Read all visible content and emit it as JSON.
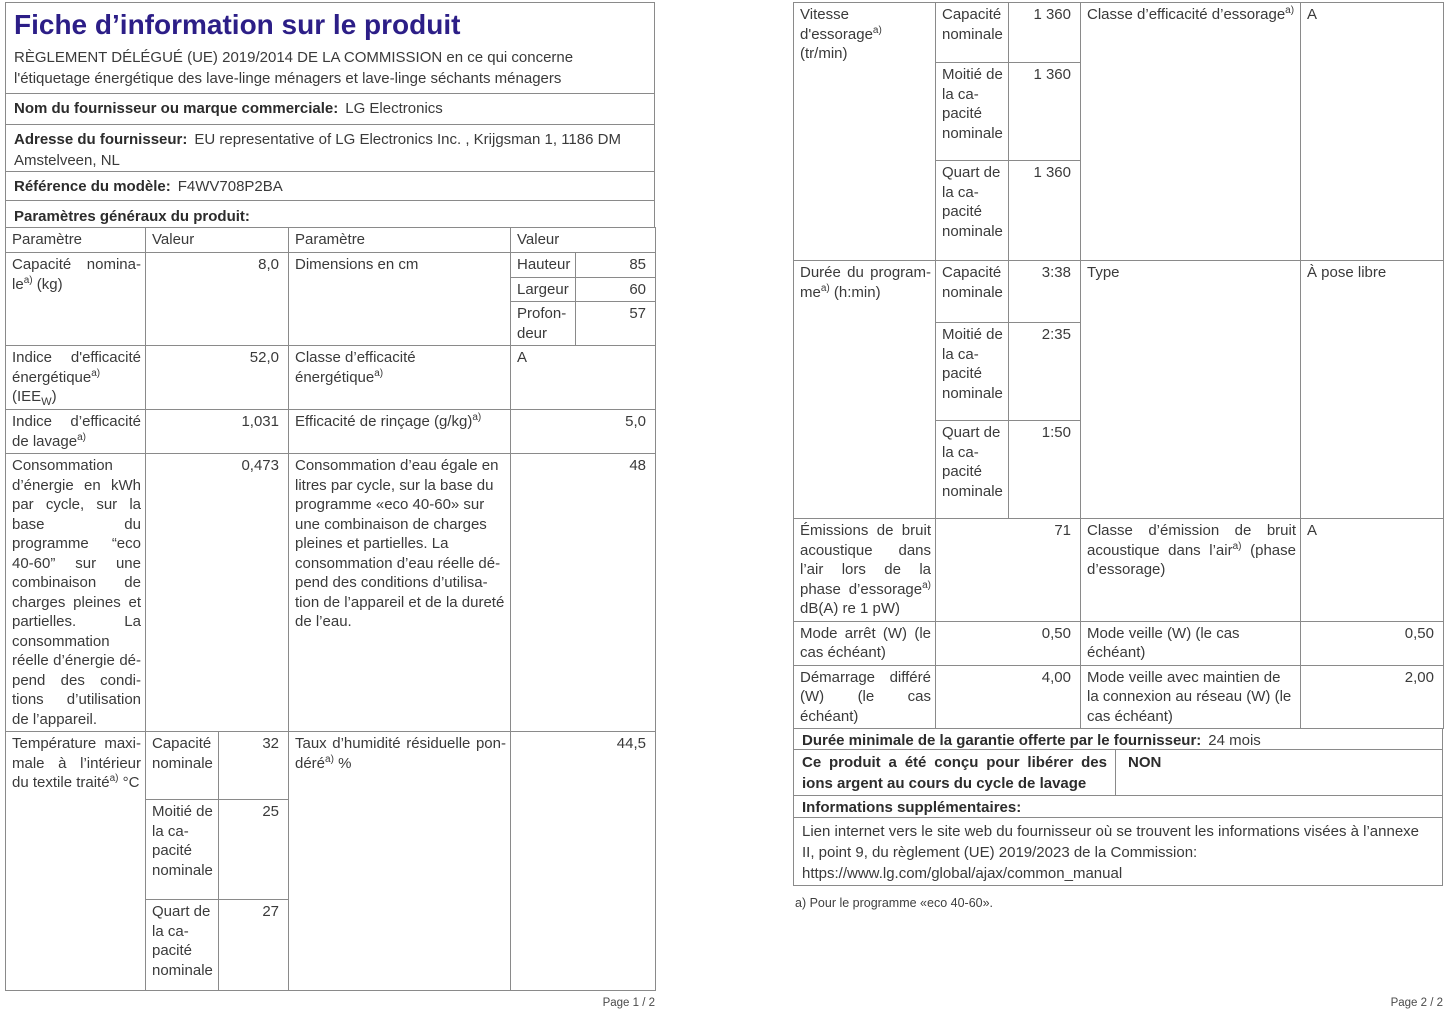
{
  "colors": {
    "title_accent": "#2c1e87",
    "body_text": "#3a3a3a",
    "table_border": "#8a8a8a"
  },
  "page1": {
    "title": "Fiche d’information sur le produit",
    "regulation": "RÈGLEMENT DÉLÉGUÉ (UE) 2019/2014 DE LA COMMISSION en ce qui concerne l'étiquetage énergétique des lave-linge ménagers et lave-linge séchants ménagers",
    "supplier_name_label": "Nom du fournisseur ou marque commerciale:",
    "supplier_name_value": "LG Electronics",
    "supplier_address_label": "Adresse du fournisseur:",
    "supplier_address_value": "EU representative of LG Electronics Inc. , Krijgsman 1, 1186 DM Amstel­veen, NL",
    "model_ref_label": "Référence du modèle:",
    "model_ref_value": "F4WV708P2BA",
    "general_params_heading": "Paramètres généraux du produit:",
    "table": {
      "headers": [
        "Paramètre",
        "Valeur",
        "Paramètre",
        "Valeur"
      ],
      "rows": {
        "capacity": {
          "label": "Capacité nomina­le^{a)} (kg)",
          "value": "8,0",
          "right_label": "Dimensions en cm",
          "dims": [
            {
              "k": "Hauteur",
              "v": "85"
            },
            {
              "k": "Largeur",
              "v": "60"
            },
            {
              "k": "Profon­deur",
              "v": "57"
            }
          ]
        },
        "eei": {
          "label": "Indice d'efficaci­té énergétique^{a)} (IEE_{W})",
          "value": "52,0",
          "right_label": "Classe d’efficacité énergétique^{a)}",
          "right_value": "A"
        },
        "wash": {
          "label": "Indice d’efficacité de lavage^{a)}",
          "value": "1,031",
          "right_label": "Efficacité de rinçage (g/kg)^{a)}",
          "right_value": "5,0"
        },
        "energy": {
          "label": "Consommation d’énergie en kWh par cycle, sur la base du programme “eco 40-60” sur une combinaison de charges pleines et partielles. La consommation réelle d’énergie dé­pend des condi­tions d’utilisation de l’appareil.",
          "value": "0,473",
          "right_label": "Consommation d’eau égale en litres par cycle, sur la base du programme «eco 40-60» sur une combinaison de charges pleines et partielles. La consommation d’eau réelle dé­pend des conditions d’utilisa­tion de l’appareil et de la dure­té de l’eau.",
          "right_value": "48"
        },
        "temp": {
          "label": "Température maxi­male à l’intérieur du textile traité^{a)} °C",
          "sub": [
            {
              "k": "Capaci­té nomi­nale",
              "v": "32"
            },
            {
              "k": "Moitié de la ca­pacité nomi­nale",
              "v": "25"
            },
            {
              "k": "Quart de la ca­pacité nomi­nale",
              "v": "27"
            }
          ],
          "right_label": "Taux d’humidité résiduelle pon­déré^{a)} %",
          "right_value": "44,5"
        }
      }
    },
    "footer": "Page 1 / 2"
  },
  "page2": {
    "rows": {
      "spin": {
        "label": "Vitesse d'essorage^{a)} (tr/min)",
        "sub": [
          {
            "k": "Capaci­té nomi­nale",
            "v": "1 360"
          },
          {
            "k": "Moitié de la ca­pacité nomi­nale",
            "v": "1 360"
          },
          {
            "k": "Quart de la ca­pacité nomi­nale",
            "v": "1 360"
          }
        ],
        "right_label": "Classe d’efficacité d’essorage^{a)}",
        "right_value": "A"
      },
      "duration": {
        "label": "Durée du program­me^{a)} (h:min)",
        "sub": [
          {
            "k": "Capaci­té nomi­nale",
            "v": "3:38"
          },
          {
            "k": "Moitié de la ca­pacité nomi­nale",
            "v": "2:35"
          },
          {
            "k": "Quart de la ca­pacité nomi­nale",
            "v": "1:50"
          }
        ],
        "right_label": "Type",
        "right_value": "À pose libre"
      },
      "noise": {
        "label": "Émissions de bruit acoustique dans l’air lors de la phase d’essorage^{a)} dB(A) re 1 pW)",
        "value": "71",
        "right_label": "Classe d’émission de bruit acoustique dans l’air^{a)} (phase d’essorage)",
        "right_value": "A"
      },
      "off_mode": {
        "label": "Mode arrêt (W) (le cas échéant)",
        "value": "0,50",
        "right_label": "Mode veille (W) (le cas échéant)",
        "right_value": "0,50"
      },
      "delayed_start": {
        "label": "Démarrage différé (W) (le cas échéant)",
        "value": "4,00",
        "right_label": "Mode veille avec maintien de la connexion au réseau (W) (le cas échéant)",
        "right_value": "2,00"
      }
    },
    "warranty_label": "Durée minimale de la garantie offerte par le fournisseur:",
    "warranty_value": "24 mois",
    "silver_ions_label": "Ce produit a été conçu pour libérer des ions ar­gent au cours du cycle de lavage",
    "silver_ions_value": "NON",
    "additional_info_heading": "Informations supplémentaires:",
    "link_label": "Lien internet vers le site web du fournisseur où se trouvent les informations visées à l’annexe II, point 9, du règlement (UE) 2019/2023 de la Commission:",
    "link_url": "https://www.lg.com/global/ajax/common_manual",
    "footnote": "a) Pour le programme «eco 40-60».",
    "footer": "Page 2 / 2"
  }
}
